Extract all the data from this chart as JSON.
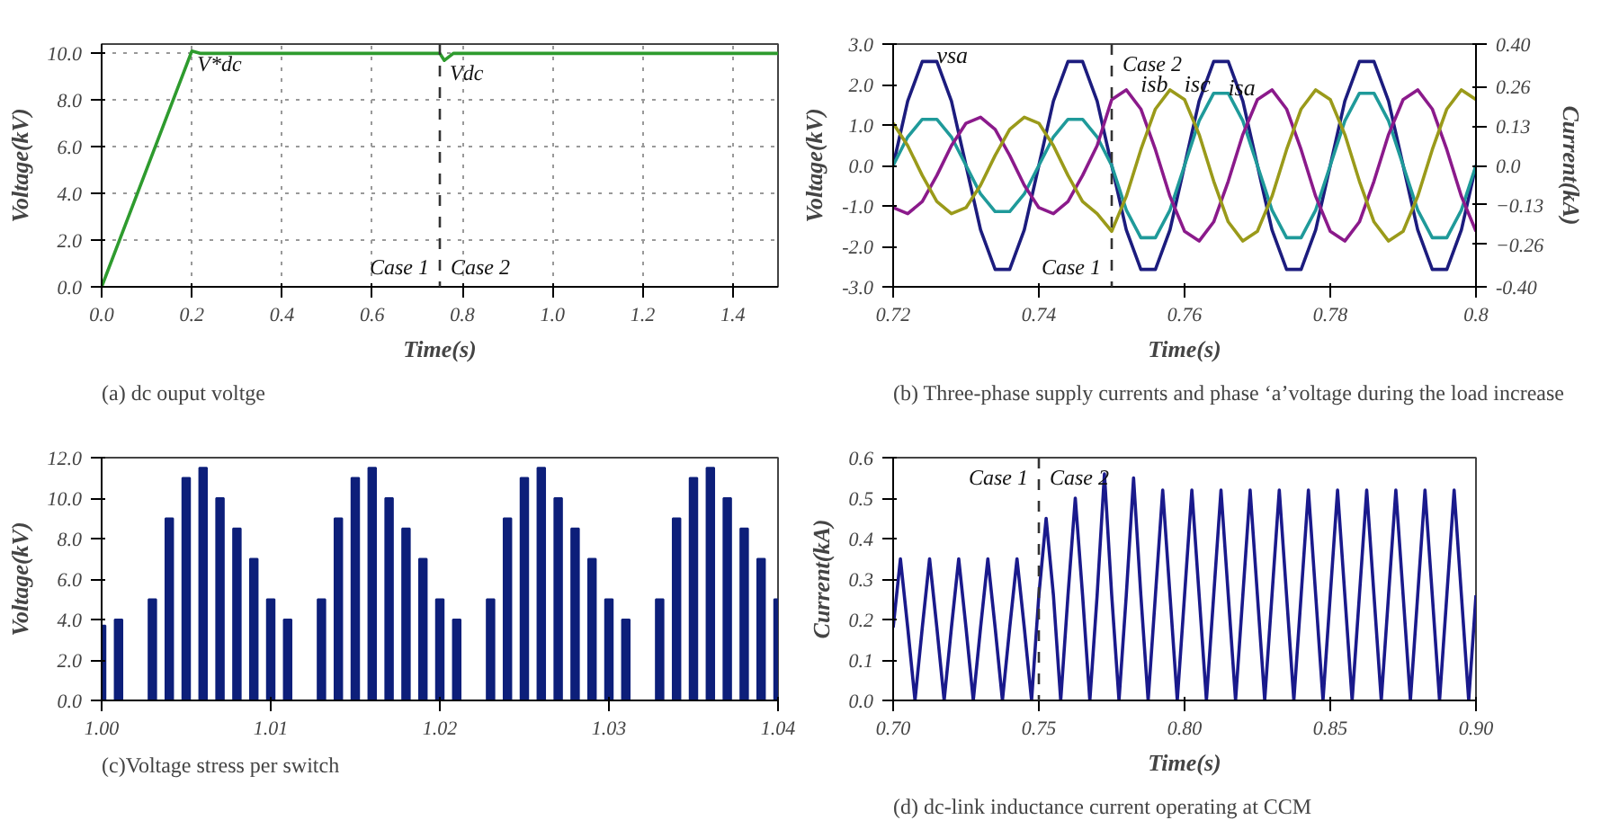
{
  "chart_data": [
    {
      "type": "line",
      "xlabel": "Time(s)",
      "ylabel": "Voltage(kV)",
      "grid": true,
      "x": [
        0,
        0.2,
        0.22,
        0.75,
        0.76,
        0.78,
        1.5
      ],
      "series": [
        {
          "color": "#2e9b2e",
          "values": [
            0,
            10.1,
            10,
            10,
            9.7,
            10,
            10
          ]
        }
      ],
      "xlim": [
        0,
        1.5
      ],
      "ylim": [
        0,
        10.4
      ],
      "xticks": [
        {
          "value": 0,
          "label": "0.0"
        },
        {
          "value": 0.2,
          "label": "0.2"
        },
        {
          "value": 0.4,
          "label": "0.4"
        },
        {
          "value": 0.6,
          "label": "0.6"
        },
        {
          "value": 0.8,
          "label": "0.8"
        },
        {
          "value": 1.0,
          "label": "1.0"
        },
        {
          "value": 1.2,
          "label": "1.2"
        },
        {
          "value": 1.4,
          "label": "1.4"
        }
      ],
      "yticks": [
        {
          "value": 0,
          "label": "0.0"
        },
        {
          "value": 2,
          "label": "2.0"
        },
        {
          "value": 4,
          "label": "4.0"
        },
        {
          "value": 6,
          "label": "6.0"
        },
        {
          "value": 8,
          "label": "8.0"
        },
        {
          "value": 10,
          "label": "10.0"
        }
      ],
      "ref_lines": [
        {
          "axis": "x",
          "value": 0.75,
          "line_style": "dashed"
        }
      ],
      "annotations": [
        {
          "text": "V*dc",
          "x": 0.2,
          "y": 10.1
        },
        {
          "text": "Vdc",
          "x": 0.76,
          "y": 9.7
        },
        "Case 1",
        "Case 2",
        "(a) dc ouput voltge"
      ]
    },
    {
      "type": "line",
      "xlabel": "Time(s)",
      "ylabel": "Voltage(kV)",
      "y2label": "Current(kA)",
      "x": [
        0.72,
        0.722,
        0.724,
        0.726,
        0.728,
        0.73,
        0.732,
        0.734,
        0.736,
        0.738,
        0.74,
        0.742,
        0.744,
        0.746,
        0.748,
        0.75,
        0.752,
        0.754,
        0.756,
        0.758,
        0.76,
        0.762,
        0.764,
        0.766,
        0.768,
        0.77,
        0.772,
        0.774,
        0.776,
        0.778,
        0.78,
        0.782,
        0.784,
        0.786,
        0.788,
        0.79,
        0.792,
        0.794,
        0.796,
        0.798,
        0.8
      ],
      "series": [
        {
          "name": "vsa",
          "color": "#1c1c7e",
          "values": [
            0,
            1.59,
            2.57,
            2.57,
            1.59,
            0,
            -1.59,
            -2.57,
            -2.57,
            -1.59,
            0,
            1.59,
            2.57,
            2.57,
            1.59,
            0,
            -1.59,
            -2.57,
            -2.57,
            -1.59,
            0,
            1.59,
            2.57,
            2.57,
            1.59,
            0,
            -1.59,
            -2.57,
            -2.57,
            -1.59,
            0,
            1.59,
            2.57,
            2.57,
            1.59,
            0,
            -1.59,
            -2.57,
            -2.57,
            -1.59,
            0
          ]
        },
        {
          "name": "isa",
          "color": "#1f9a9a",
          "axis": "y2",
          "values": [
            0,
            0.094,
            0.152,
            0.152,
            0.094,
            0,
            -0.094,
            -0.152,
            -0.152,
            -0.094,
            0,
            0.094,
            0.152,
            0.152,
            0.094,
            0,
            -0.147,
            -0.238,
            -0.238,
            -0.147,
            0,
            0.147,
            0.238,
            0.238,
            0.147,
            0,
            -0.147,
            -0.238,
            -0.238,
            -0.147,
            0,
            0.147,
            0.238,
            0.238,
            0.147,
            0,
            -0.147,
            -0.238,
            -0.238,
            -0.147,
            0
          ]
        },
        {
          "name": "isb",
          "color": "#8b1a8b",
          "axis": "y2",
          "values": [
            -0.139,
            -0.159,
            -0.119,
            -0.033,
            0.065,
            0.139,
            0.159,
            0.119,
            0.033,
            -0.065,
            -0.139,
            -0.159,
            -0.119,
            -0.033,
            0.065,
            0.217,
            0.249,
            0.186,
            0.052,
            -0.102,
            -0.217,
            -0.249,
            -0.186,
            -0.052,
            0.102,
            0.217,
            0.249,
            0.186,
            0.052,
            -0.102,
            -0.217,
            -0.249,
            -0.186,
            -0.052,
            0.102,
            0.217,
            0.249,
            0.186,
            0.052,
            -0.102,
            -0.217
          ]
        },
        {
          "name": "isc",
          "color": "#9a9a1a",
          "axis": "y2",
          "values": [
            0.139,
            0.065,
            -0.033,
            -0.119,
            -0.159,
            -0.139,
            -0.065,
            0.033,
            0.119,
            0.159,
            0.139,
            0.065,
            -0.033,
            -0.119,
            -0.159,
            -0.217,
            -0.102,
            0.052,
            0.186,
            0.249,
            0.217,
            0.102,
            -0.052,
            -0.186,
            -0.249,
            -0.217,
            -0.102,
            0.052,
            0.186,
            0.249,
            0.217,
            0.102,
            -0.052,
            -0.186,
            -0.249,
            -0.217,
            -0.102,
            0.052,
            0.186,
            0.249,
            0.217
          ]
        }
      ],
      "xlim": [
        0.72,
        0.8
      ],
      "ylim": [
        -3,
        3
      ],
      "y2lim": [
        -0.4,
        0.4
      ],
      "xticks": [
        0.72,
        0.74,
        0.76,
        0.78,
        0.8
      ],
      "yticks": [
        {
          "value": -3,
          "label": "-3.0"
        },
        {
          "value": -2,
          "label": "-2.0"
        },
        {
          "value": -1,
          "label": "-1.0"
        },
        {
          "value": 0,
          "label": "0.0"
        },
        {
          "value": 1,
          "label": "1.0"
        },
        {
          "value": 2,
          "label": "2.0"
        },
        {
          "value": 3,
          "label": "3.0"
        }
      ],
      "y2ticks": [
        {
          "value": -0.4,
          "label": "-0.40"
        },
        -0.26,
        -0.13,
        {
          "value": 0,
          "label": "0.0"
        },
        0.13,
        0.26,
        {
          "value": 0.4,
          "label": "0.40"
        }
      ],
      "ref_lines": [
        {
          "axis": "x",
          "value": 0.75,
          "line_style": "dashed"
        }
      ],
      "annotations": [
        "Case 1",
        "Case 2",
        "(b) Three-phase supply currents and phase ‘a’voltage during the load increase"
      ]
    },
    {
      "type": "bar",
      "ylabel": "Voltage(kV)",
      "x": [
        1.0,
        1.001,
        1.002,
        1.003,
        1.004,
        1.005,
        1.006,
        1.007,
        1.008,
        1.009,
        1.01,
        1.011,
        1.012,
        1.013,
        1.014,
        1.015,
        1.016,
        1.017,
        1.018,
        1.019,
        1.02,
        1.021,
        1.022,
        1.023,
        1.024,
        1.025,
        1.026,
        1.027,
        1.028,
        1.029,
        1.03,
        1.031,
        1.032,
        1.033,
        1.034,
        1.035,
        1.036,
        1.037,
        1.038,
        1.039,
        1.04
      ],
      "series": [
        {
          "color": "#0d1f7a",
          "values": [
            3.7,
            4,
            0,
            5,
            9,
            11,
            11.5,
            10,
            8.5,
            7,
            5,
            4,
            0,
            5,
            9,
            11,
            11.5,
            10,
            8.5,
            7,
            5,
            4,
            0,
            5,
            9,
            11,
            11.5,
            10,
            8.5,
            7,
            5,
            4,
            0,
            5,
            9,
            11,
            11.5,
            10,
            8.5,
            7,
            5
          ]
        }
      ],
      "xlim": [
        1.0,
        1.04
      ],
      "ylim": [
        0,
        12
      ],
      "xticks": [
        {
          "value": 1.0,
          "label": "1.00"
        },
        {
          "value": 1.01,
          "label": "1.01"
        },
        {
          "value": 1.02,
          "label": "1.02"
        },
        {
          "value": 1.03,
          "label": "1.03"
        },
        {
          "value": 1.04,
          "label": "1.04"
        }
      ],
      "yticks": [
        {
          "value": 0,
          "label": "0.0"
        },
        {
          "value": 2,
          "label": "2.0"
        },
        {
          "value": 4,
          "label": "4.0"
        },
        {
          "value": 6,
          "label": "6.0"
        },
        {
          "value": 8,
          "label": "8.0"
        },
        {
          "value": 10,
          "label": "10.0"
        },
        {
          "value": 12,
          "label": "12.0"
        }
      ],
      "annotations": [
        "(c)Voltage stress per switch"
      ]
    },
    {
      "type": "line",
      "xlabel": "Time(s)",
      "ylabel": "Current(kA)",
      "x": [
        0.7,
        0.7025,
        0.705,
        0.7075,
        0.71,
        0.7125,
        0.715,
        0.7175,
        0.72,
        0.7225,
        0.725,
        0.7275,
        0.73,
        0.7325,
        0.735,
        0.7375,
        0.74,
        0.7425,
        0.745,
        0.7475,
        0.75,
        0.7525,
        0.755,
        0.7575,
        0.76,
        0.7625,
        0.765,
        0.7675,
        0.77,
        0.7725,
        0.775,
        0.7775,
        0.78,
        0.7825,
        0.785,
        0.7875,
        0.79,
        0.7925,
        0.795,
        0.7975,
        0.8,
        0.8025,
        0.805,
        0.8075,
        0.81,
        0.8125,
        0.815,
        0.8175,
        0.82,
        0.8225,
        0.825,
        0.8275,
        0.83,
        0.8325,
        0.835,
        0.8375,
        0.84,
        0.8425,
        0.845,
        0.8475,
        0.85,
        0.8525,
        0.855,
        0.8575,
        0.86,
        0.8625,
        0.865,
        0.8675,
        0.87,
        0.8725,
        0.875,
        0.8775,
        0.88,
        0.8825,
        0.885,
        0.8875,
        0.89,
        0.8925,
        0.895,
        0.8975,
        0.9
      ],
      "series": [
        {
          "color": "#1a1a8c",
          "values": [
            0.18,
            0.35,
            0.18,
            0,
            0.18,
            0.35,
            0.18,
            0,
            0.18,
            0.35,
            0.18,
            0,
            0.18,
            0.35,
            0.18,
            0,
            0.18,
            0.35,
            0.18,
            0,
            0.26,
            0.45,
            0.26,
            0,
            0.26,
            0.5,
            0.26,
            0,
            0.26,
            0.56,
            0.26,
            0,
            0.26,
            0.55,
            0.26,
            0,
            0.26,
            0.52,
            0.26,
            0,
            0.26,
            0.52,
            0.26,
            0,
            0.26,
            0.52,
            0.26,
            0,
            0.26,
            0.52,
            0.26,
            0,
            0.26,
            0.52,
            0.26,
            0,
            0.26,
            0.52,
            0.26,
            0,
            0.26,
            0.52,
            0.26,
            0,
            0.26,
            0.52,
            0.26,
            0,
            0.26,
            0.52,
            0.26,
            0,
            0.26,
            0.52,
            0.26,
            0,
            0.26,
            0.52,
            0.26,
            0,
            0.26
          ]
        }
      ],
      "xlim": [
        0.7,
        0.9
      ],
      "ylim": [
        0,
        0.6
      ],
      "xticks": [
        {
          "value": 0.7,
          "label": "0.70"
        },
        {
          "value": 0.75,
          "label": "0.75"
        },
        {
          "value": 0.8,
          "label": "0.80"
        },
        {
          "value": 0.85,
          "label": "0.85"
        },
        {
          "value": 0.9,
          "label": "0.90"
        }
      ],
      "yticks": [
        {
          "value": 0,
          "label": "0.0"
        },
        0.1,
        0.2,
        0.3,
        0.4,
        0.5,
        0.6
      ],
      "ref_lines": [
        {
          "axis": "x",
          "value": 0.75,
          "line_style": "dashed"
        }
      ],
      "annotations": [
        "Case 1",
        "Case 2",
        "(d) dc-link inductance current operating at CCM"
      ]
    }
  ]
}
